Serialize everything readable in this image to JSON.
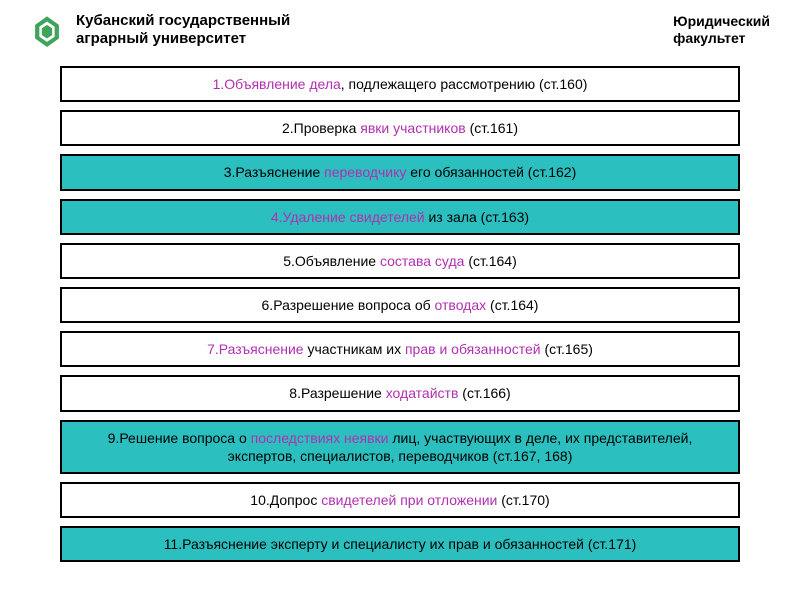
{
  "header": {
    "university_line1": "Кубанский государственный",
    "university_line2": "аграрный университет",
    "faculty_line1": "Юридический",
    "faculty_line2": "факультет",
    "logo_color": "#3fa35a"
  },
  "boxes": [
    {
      "bg": "white",
      "parts": [
        {
          "t": "1.Объявление дела",
          "hl": true
        },
        {
          "t": ", подлежащего рассмотрению (ст.160)",
          "hl": false
        }
      ]
    },
    {
      "bg": "white",
      "parts": [
        {
          "t": "2.Проверка ",
          "hl": false
        },
        {
          "t": "явки участников ",
          "hl": true
        },
        {
          "t": "(ст.161)",
          "hl": false
        }
      ]
    },
    {
      "bg": "teal",
      "parts": [
        {
          "t": "3.Разъяснение ",
          "hl": false
        },
        {
          "t": "переводчику ",
          "hl": true
        },
        {
          "t": "его обязанностей (ст.162)",
          "hl": false
        }
      ]
    },
    {
      "bg": "teal",
      "parts": [
        {
          "t": "4.Удаление свидетелей ",
          "hl": true
        },
        {
          "t": "из зала (ст.163)",
          "hl": false
        }
      ]
    },
    {
      "bg": "white",
      "parts": [
        {
          "t": "5.Объявление ",
          "hl": false
        },
        {
          "t": "состава суда ",
          "hl": true
        },
        {
          "t": "(ст.164)",
          "hl": false
        }
      ]
    },
    {
      "bg": "white",
      "parts": [
        {
          "t": "6.Разрешение вопроса об ",
          "hl": false
        },
        {
          "t": "отводах ",
          "hl": true
        },
        {
          "t": "(ст.164)",
          "hl": false
        }
      ]
    },
    {
      "bg": "white",
      "parts": [
        {
          "t": "7.Разъяснение ",
          "hl": true
        },
        {
          "t": "участникам их ",
          "hl": false
        },
        {
          "t": "прав и обязанностей ",
          "hl": true
        },
        {
          "t": "(ст.165)",
          "hl": false
        }
      ]
    },
    {
      "bg": "white",
      "parts": [
        {
          "t": "8.Разрешение ",
          "hl": false
        },
        {
          "t": "ходатайств ",
          "hl": true
        },
        {
          "t": "(ст.166)",
          "hl": false
        }
      ]
    },
    {
      "bg": "teal",
      "parts": [
        {
          "t": "9.Решение вопроса о ",
          "hl": false
        },
        {
          "t": "последствиях неявки ",
          "hl": true
        },
        {
          "t": "лиц, участвующих в деле, их представителей, экспертов, специалистов, переводчиков (ст.167, 168)",
          "hl": false
        }
      ]
    },
    {
      "bg": "white",
      "parts": [
        {
          "t": "10.Допрос ",
          "hl": false
        },
        {
          "t": "свидетелей при отложении ",
          "hl": true
        },
        {
          "t": "(ст.170)",
          "hl": false
        }
      ]
    },
    {
      "bg": "teal",
      "parts": [
        {
          "t": "11.Разъяснение эксперту и специалисту их прав и обязанностей (ст.171)",
          "hl": false
        }
      ]
    }
  ],
  "colors": {
    "highlight": "#b030b0",
    "teal": "#2bbfbf",
    "border": "#000000"
  }
}
